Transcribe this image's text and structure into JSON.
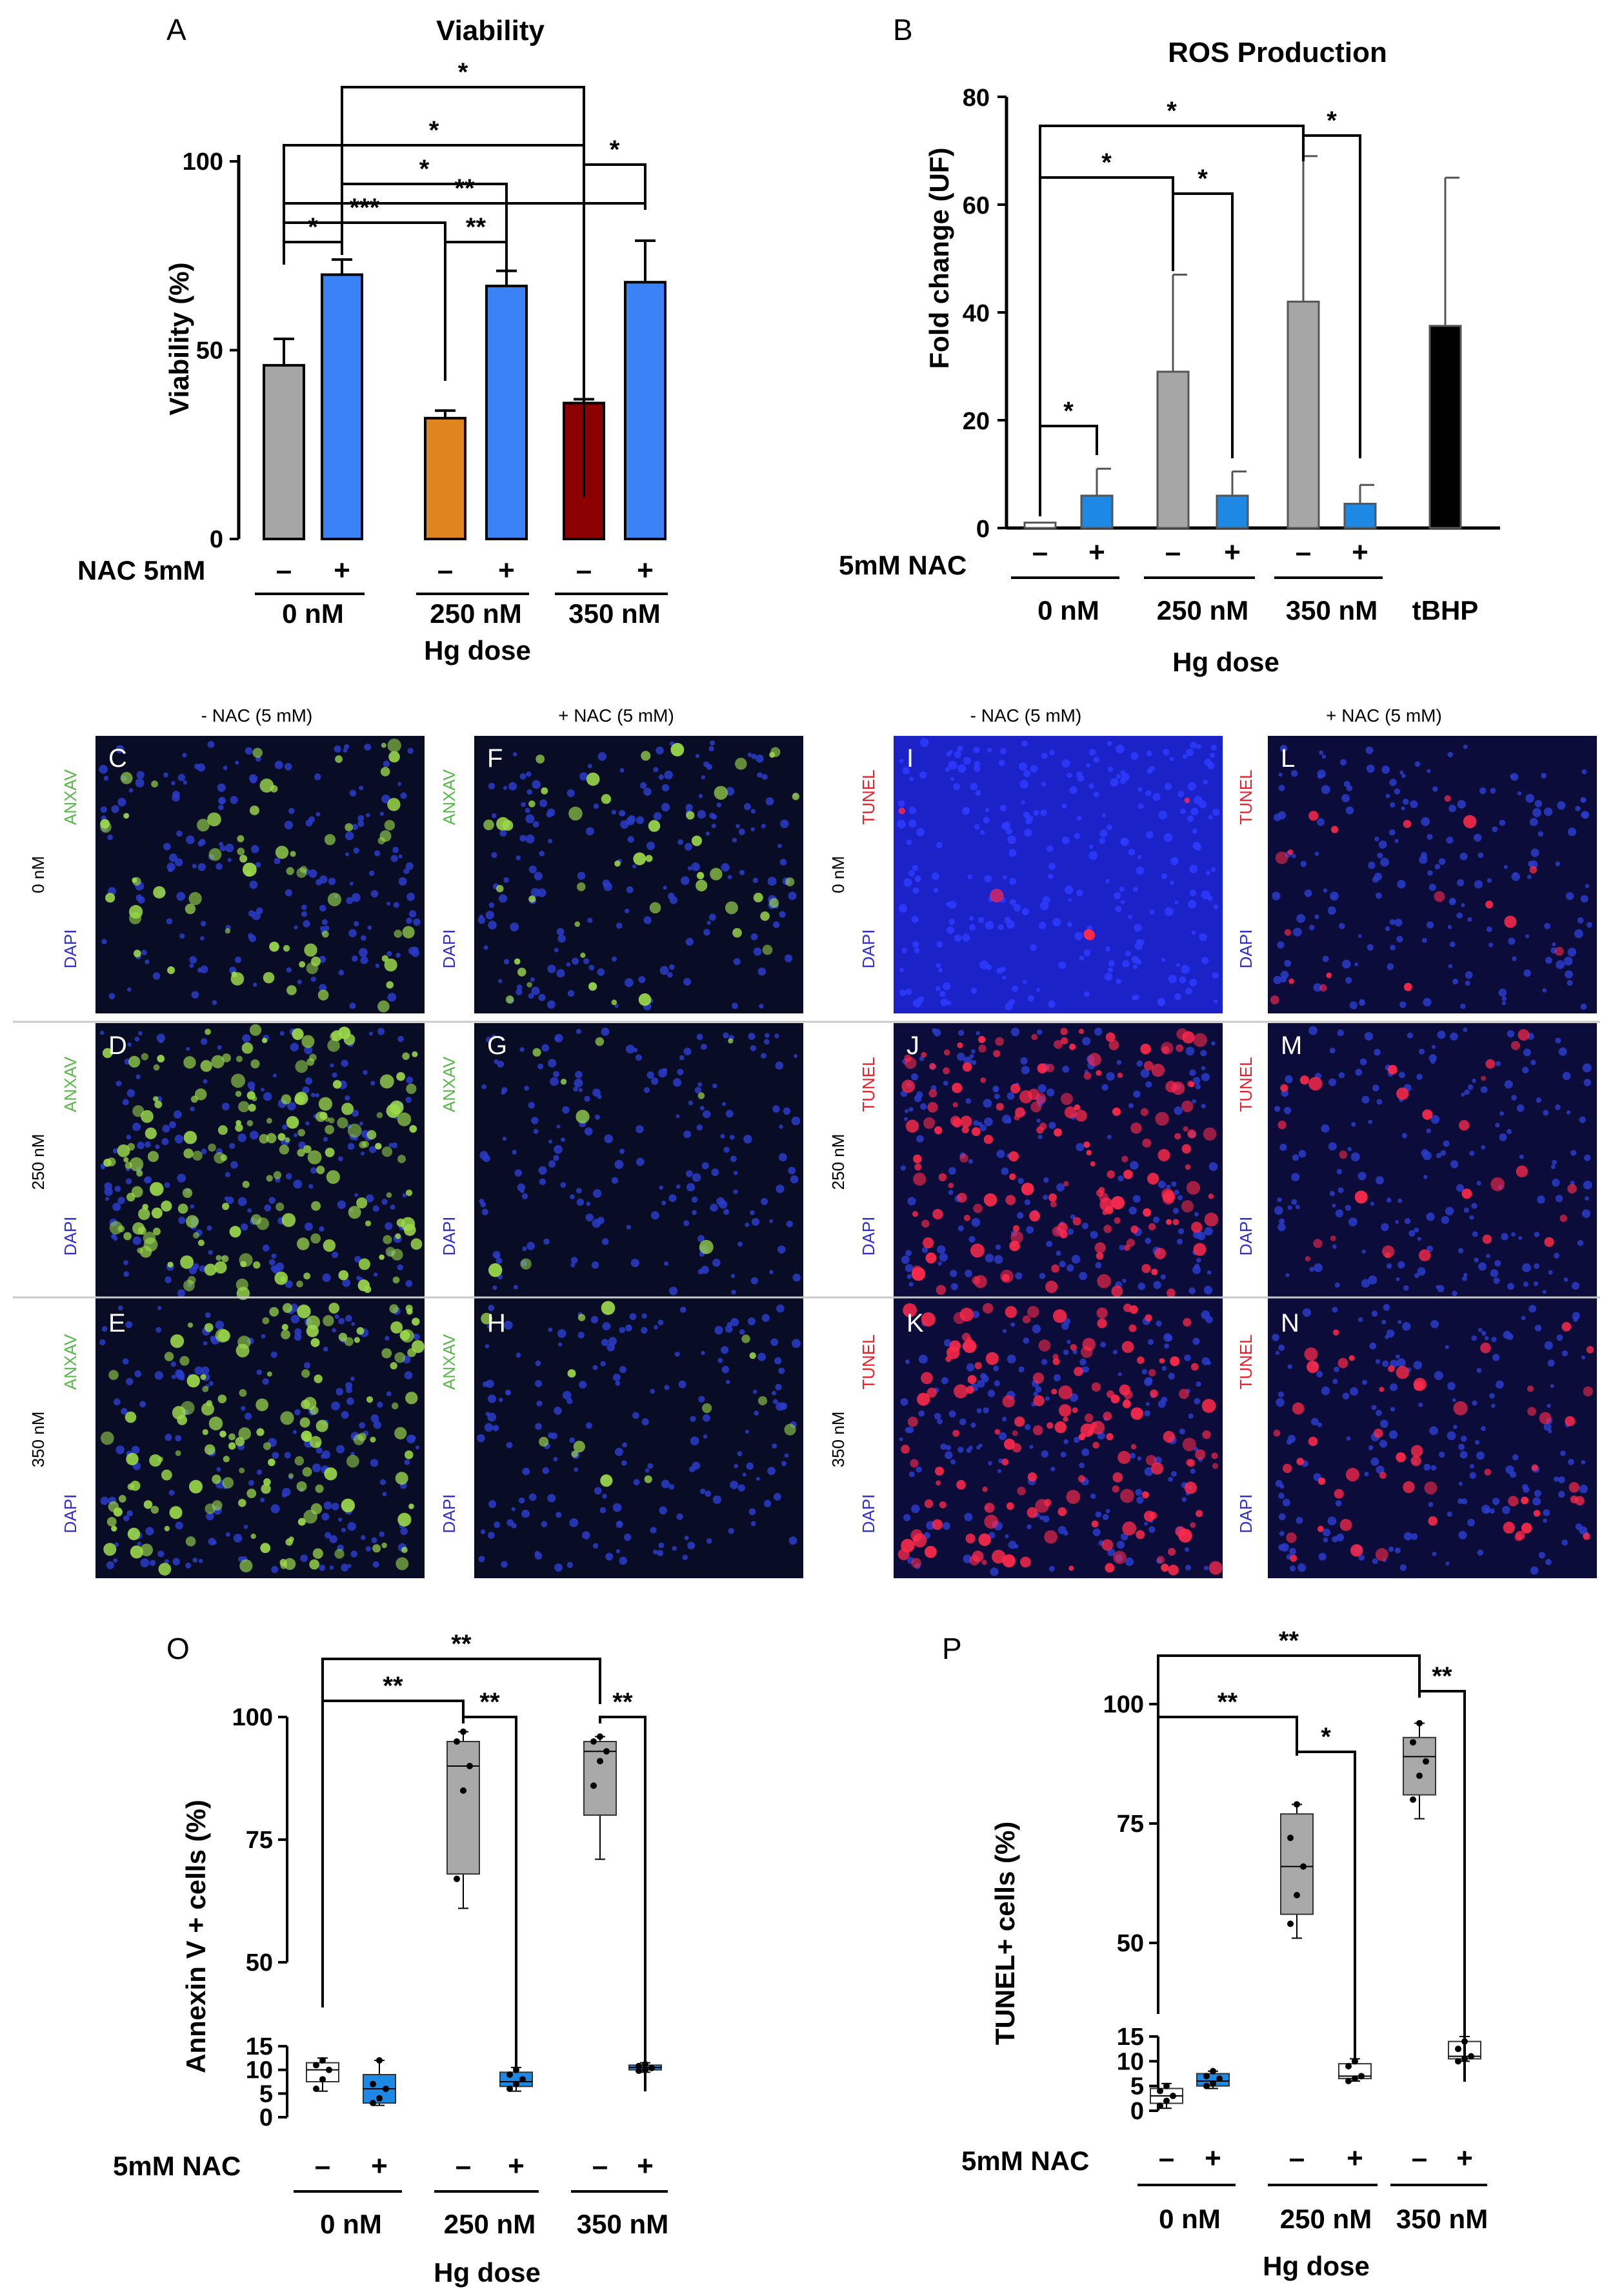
{
  "figure": {
    "panel_letters": [
      "A",
      "B",
      "C",
      "D",
      "E",
      "F",
      "G",
      "H",
      "I",
      "J",
      "K",
      "L",
      "M",
      "N",
      "O",
      "P"
    ]
  },
  "colors": {
    "gray": "#a6a6a6",
    "blue": "#3b82f6",
    "orange": "#e0841f",
    "darkred": "#8b0000",
    "black": "#000000",
    "nac_blue": "#1e88e5",
    "box_gray": "#a9a9a9",
    "anxav_green": "#58b84a",
    "tunel_red": "#e8202c",
    "dapi_blue": "#3030c8"
  },
  "micro": {
    "col_headers": [
      "- NAC (5 mM)",
      "+ NAC (5 mM)",
      "- NAC (5 mM)",
      "+ NAC (5 mM)"
    ],
    "row_labels": [
      "0 nM",
      "250 nM",
      "350 nM"
    ],
    "stain_left": "ANXAV",
    "stain_right": "TUNEL",
    "counterstain": "DAPI",
    "panels": [
      {
        "letter": "C",
        "stain": "anxav",
        "intensity": 0.35
      },
      {
        "letter": "D",
        "stain": "anxav",
        "intensity": 0.95
      },
      {
        "letter": "E",
        "stain": "anxav",
        "intensity": 0.8
      },
      {
        "letter": "F",
        "stain": "anxav",
        "intensity": 0.25
      },
      {
        "letter": "G",
        "stain": "anxav",
        "intensity": 0.05
      },
      {
        "letter": "H",
        "stain": "anxav",
        "intensity": 0.08
      },
      {
        "letter": "I",
        "stain": "tunel",
        "intensity": 0.03
      },
      {
        "letter": "J",
        "stain": "tunel",
        "intensity": 0.9
      },
      {
        "letter": "K",
        "stain": "tunel",
        "intensity": 0.85
      },
      {
        "letter": "L",
        "stain": "tunel",
        "intensity": 0.1
      },
      {
        "letter": "M",
        "stain": "tunel",
        "intensity": 0.15
      },
      {
        "letter": "N",
        "stain": "tunel",
        "intensity": 0.3
      }
    ]
  },
  "chart_data": [
    {
      "panel": "A",
      "type": "bar",
      "title": "Viability",
      "ylabel": "Viability (%)",
      "xlabel": "Hg dose",
      "treatment_label": "NAC 5mM",
      "ylim": [
        0,
        100
      ],
      "yticks": [
        "0",
        "50",
        "100"
      ],
      "groups": [
        "0 nM",
        "250 nM",
        "350 nM"
      ],
      "signs": [
        "–",
        "+"
      ],
      "bars": [
        {
          "group": "0 nM",
          "nac": "-",
          "value": 46,
          "err": 7,
          "color": "#a6a6a6"
        },
        {
          "group": "0 nM",
          "nac": "+",
          "value": 70,
          "err": 4,
          "color": "#3b82f6"
        },
        {
          "group": "250 nM",
          "nac": "-",
          "value": 32,
          "err": 2,
          "color": "#e0841f"
        },
        {
          "group": "250 nM",
          "nac": "+",
          "value": 67,
          "err": 4,
          "color": "#3b82f6"
        },
        {
          "group": "350 nM",
          "nac": "-",
          "value": 36,
          "err": 1,
          "color": "#8b0000"
        },
        {
          "group": "350 nM",
          "nac": "+",
          "value": 68,
          "err": 11,
          "color": "#3b82f6"
        }
      ],
      "significance": [
        {
          "from": 0,
          "to": 1,
          "label": "*"
        },
        {
          "from": 2,
          "to": 3,
          "label": "**"
        },
        {
          "from": 0,
          "to": 2,
          "label": "***"
        },
        {
          "from": 0,
          "to": 5,
          "label": "**"
        },
        {
          "from": 0,
          "to": 4,
          "label": "*"
        },
        {
          "from": 1,
          "to": 4,
          "label": "*"
        },
        {
          "from": 1,
          "to": 3,
          "label": "*"
        },
        {
          "from": 4,
          "to": 5,
          "label": "*"
        }
      ]
    },
    {
      "panel": "B",
      "type": "bar",
      "title": "ROS Production",
      "ylabel": "Fold change (UF)",
      "xlabel": "Hg dose",
      "treatment_label": "5mM NAC",
      "ylim": [
        0,
        80
      ],
      "yticks": [
        "0",
        "20",
        "40",
        "60",
        "80"
      ],
      "groups": [
        "0 nM",
        "250 nM",
        "350 nM",
        "tBHP"
      ],
      "signs": [
        "–",
        "+"
      ],
      "bars": [
        {
          "group": "0 nM",
          "nac": "-",
          "value": 1,
          "err": 0,
          "color": "#ffffff"
        },
        {
          "group": "0 nM",
          "nac": "+",
          "value": 6,
          "err": 5,
          "color": "#1e88e5"
        },
        {
          "group": "250 nM",
          "nac": "-",
          "value": 29,
          "err": 18,
          "color": "#a6a6a6"
        },
        {
          "group": "250 nM",
          "nac": "+",
          "value": 6,
          "err": 4.5,
          "color": "#1e88e5"
        },
        {
          "group": "350 nM",
          "nac": "-",
          "value": 42,
          "err": 27,
          "color": "#a6a6a6"
        },
        {
          "group": "350 nM",
          "nac": "+",
          "value": 4.5,
          "err": 3.5,
          "color": "#1e88e5"
        },
        {
          "group": "tBHP",
          "nac": "",
          "value": 37.5,
          "err": 27.5,
          "color": "#000000"
        }
      ],
      "significance": [
        {
          "from": 0,
          "to": 1,
          "label": "*"
        },
        {
          "from": 2,
          "to": 3,
          "label": "*"
        },
        {
          "from": 0,
          "to": 2,
          "label": "*"
        },
        {
          "from": 4,
          "to": 5,
          "label": "*"
        },
        {
          "from": 0,
          "to": 4,
          "label": "*"
        }
      ]
    },
    {
      "panel": "O",
      "type": "box",
      "ylabel": "Annexin V + cells (%)",
      "xlabel": "Hg dose",
      "treatment_label": "5mM NAC",
      "yticks_lower": [
        "0",
        "5",
        "10",
        "15"
      ],
      "yticks_upper": [
        "50",
        "75",
        "100"
      ],
      "groups": [
        "0 nM",
        "250 nM",
        "350 nM"
      ],
      "signs": [
        "–",
        "+"
      ],
      "boxes": [
        {
          "group": "0 nM",
          "nac": "-",
          "min": 5.5,
          "q1": 7.5,
          "median": 10,
          "q3": 11.5,
          "max": 12.5,
          "points": [
            6,
            8,
            10,
            11,
            12
          ],
          "color": "#ffffff"
        },
        {
          "group": "0 nM",
          "nac": "+",
          "min": 2.5,
          "q1": 3,
          "median": 6,
          "q3": 9,
          "max": 12,
          "points": [
            3,
            4,
            6,
            7,
            12
          ],
          "color": "#1e88e5"
        },
        {
          "group": "250 nM",
          "nac": "-",
          "min": 61,
          "q1": 68,
          "median": 90,
          "q3": 95,
          "max": 97,
          "points": [
            67,
            85,
            90,
            95,
            97
          ],
          "color": "#a9a9a9"
        },
        {
          "group": "250 nM",
          "nac": "+",
          "min": 5.5,
          "q1": 6.5,
          "median": 7.5,
          "q3": 9.5,
          "max": 10.5,
          "points": [
            6,
            7,
            8,
            9,
            10
          ],
          "color": "#1e88e5"
        },
        {
          "group": "350 nM",
          "nac": "-",
          "min": 71,
          "q1": 80,
          "median": 93,
          "q3": 95,
          "max": 96,
          "points": [
            86,
            91,
            93,
            95,
            96
          ],
          "color": "#a9a9a9"
        },
        {
          "group": "350 nM",
          "nac": "+",
          "min": 9.5,
          "q1": 10,
          "median": 10.5,
          "q3": 11,
          "max": 11.5,
          "points": [
            9.8,
            10,
            10.4,
            10.8,
            11.2
          ],
          "color": "#1e88e5"
        }
      ],
      "significance": [
        {
          "from": 2,
          "to": 3,
          "label": "**"
        },
        {
          "from": 0,
          "to": 2,
          "label": "**"
        },
        {
          "from": 4,
          "to": 5,
          "label": "**"
        },
        {
          "from": 0,
          "to": 4,
          "label": "**"
        }
      ]
    },
    {
      "panel": "P",
      "type": "box",
      "ylabel": "TUNEL+ cells (%)",
      "xlabel": "Hg dose",
      "treatment_label": "5mM NAC",
      "yticks_lower": [
        "0",
        "5",
        "10",
        "15"
      ],
      "yticks_upper": [
        "50",
        "75",
        "100"
      ],
      "groups": [
        "0 nM",
        "250 nM",
        "350 nM"
      ],
      "signs": [
        "–",
        "+"
      ],
      "boxes": [
        {
          "group": "0 nM",
          "nac": "-",
          "min": 0.5,
          "q1": 1.5,
          "median": 3,
          "q3": 4.5,
          "max": 5.5,
          "points": [
            1,
            2,
            3,
            4,
            5
          ]
        },
        {
          "group": "0 nM",
          "nac": "+",
          "min": 4.5,
          "q1": 5,
          "median": 6,
          "q3": 7.5,
          "max": 8,
          "points": [
            5,
            5.5,
            6.5,
            7,
            8
          ],
          "color": "#1e88e5"
        },
        {
          "group": "250 nM",
          "nac": "-",
          "min": 51,
          "q1": 56,
          "median": 66,
          "q3": 77,
          "max": 79,
          "points": [
            54,
            60,
            66,
            72,
            79
          ],
          "color": "#a9a9a9"
        },
        {
          "group": "250 nM",
          "nac": "+",
          "min": 6,
          "q1": 6.5,
          "median": 7,
          "q3": 9.5,
          "max": 10.5,
          "points": [
            6,
            6.5,
            7,
            9,
            10
          ]
        },
        {
          "group": "350 nM",
          "nac": "-",
          "min": 76,
          "q1": 81,
          "median": 89,
          "q3": 93,
          "max": 96,
          "points": [
            80,
            85,
            88,
            92,
            96
          ],
          "color": "#a9a9a9"
        },
        {
          "group": "350 nM",
          "nac": "+",
          "min": 10,
          "q1": 10.5,
          "median": 11,
          "q3": 14,
          "max": 15,
          "points": [
            10,
            10.5,
            11,
            12.5,
            14
          ]
        }
      ],
      "significance": [
        {
          "from": 2,
          "to": 3,
          "label": "*"
        },
        {
          "from": 0,
          "to": 2,
          "label": "**"
        },
        {
          "from": 4,
          "to": 5,
          "label": "**"
        },
        {
          "from": 0,
          "to": 4,
          "label": "**"
        }
      ]
    }
  ]
}
